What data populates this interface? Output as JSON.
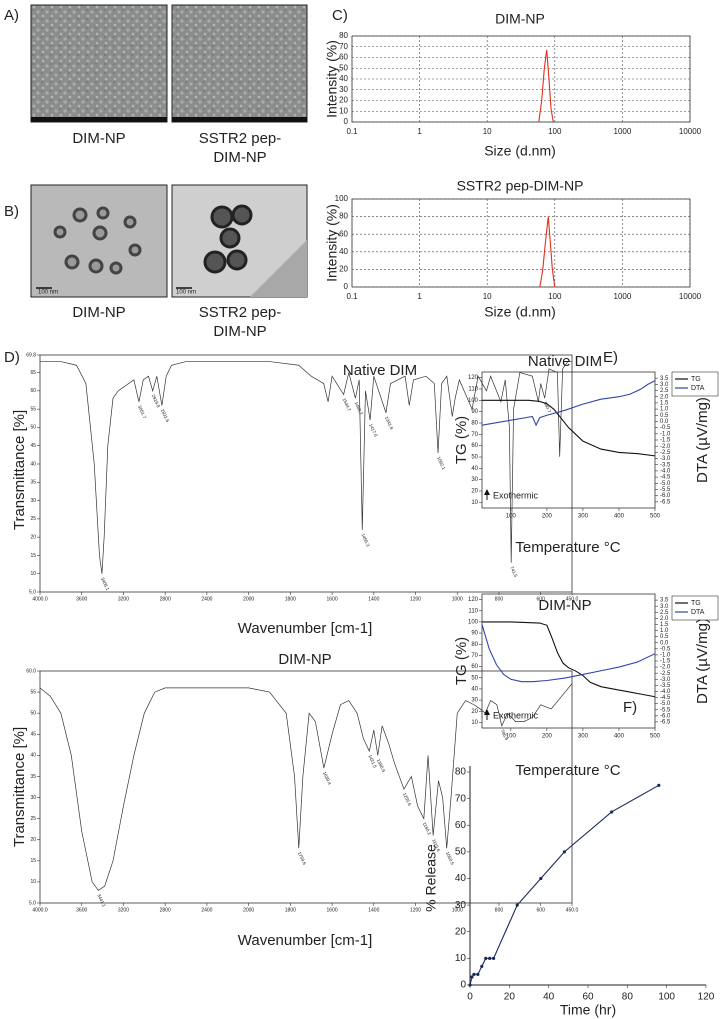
{
  "panel_labels": [
    "A)",
    "B)",
    "C)",
    "D)",
    "E)",
    "F)"
  ],
  "images": [
    {
      "caption": [
        "DIM-NP"
      ]
    },
    {
      "caption": [
        "SSTR2 pep-",
        "DIM-NP"
      ]
    },
    {
      "caption": [
        "DIM-NP"
      ],
      "scale_bar": "100 nm"
    },
    {
      "caption": [
        "SSTR2 pep-",
        "DIM-NP"
      ],
      "scale_bar": "100 nm"
    }
  ],
  "chart_data": [
    {
      "type": "line",
      "title": "DIM-NP",
      "xlabel": "Size (d.nm)",
      "ylabel": "Intensity (%)",
      "xscale": "log",
      "xlim": [
        0.1,
        10000
      ],
      "xticks": [
        0.1,
        1,
        10,
        100,
        1000,
        10000
      ],
      "ylim": [
        0,
        80
      ],
      "yticks": [
        0,
        10,
        20,
        30,
        40,
        50,
        60,
        70,
        80
      ],
      "grid": true,
      "series": [
        {
          "color": "#e0301e",
          "x": [
            58,
            64,
            70,
            76,
            82,
            88,
            95
          ],
          "values": [
            0,
            20,
            50,
            67,
            40,
            12,
            0
          ]
        }
      ]
    },
    {
      "type": "line",
      "title": "SSTR2 pep-DIM-NP",
      "xlabel": "Size (d.nm)",
      "ylabel": "Intensity (%)",
      "xscale": "log",
      "xlim": [
        0.1,
        10000
      ],
      "xticks": [
        0.1,
        1,
        10,
        100,
        1000,
        10000
      ],
      "ylim": [
        0,
        100
      ],
      "yticks": [
        0,
        20,
        40,
        60,
        80,
        100
      ],
      "grid": true,
      "series": [
        {
          "color": "#e0301e",
          "x": [
            60,
            66,
            72,
            80,
            86,
            92,
            100
          ],
          "values": [
            0,
            18,
            48,
            80,
            50,
            20,
            0
          ]
        }
      ]
    },
    {
      "type": "line",
      "title": "Native DIM",
      "xlabel": "Wavenumber [cm-1]",
      "ylabel": "Transmittance [%]",
      "xlim": [
        4000,
        450
      ],
      "x_scale_change": 2000,
      "xticks": [
        {
          "value": 4000,
          "label": "4000.0"
        },
        3600,
        3200,
        2800,
        2400,
        2000,
        1800,
        1600,
        1400,
        1200,
        1000,
        800,
        600,
        {
          "value": 450,
          "label": "450.0"
        }
      ],
      "ylim": [
        5,
        69.8
      ],
      "yticks": [
        {
          "value": 5,
          "label": "5.0"
        },
        10,
        15,
        20,
        25,
        30,
        35,
        40,
        45,
        50,
        55,
        60,
        65,
        69.8
      ],
      "grid": false,
      "peaks": [
        3406.1,
        3051.7,
        2919.8,
        2831.6,
        1544.7,
        1488.2,
        1455.3,
        1417.6,
        1341.8,
        1092.1,
        741.5,
        580.7
      ],
      "series": [
        {
          "color": "#333333",
          "x": [
            4000,
            3800,
            3650,
            3560,
            3480,
            3430,
            3406.1,
            3385,
            3350,
            3300,
            3250,
            3200,
            3100,
            3051.7,
            3010,
            2960,
            2919.8,
            2880,
            2831.6,
            2790,
            2740,
            2600,
            2200,
            1900,
            1760,
            1700,
            1640,
            1619,
            1600,
            1544.7,
            1520,
            1488.2,
            1470,
            1455.3,
            1440,
            1417.6,
            1400,
            1341.8,
            1320,
            1250,
            1230,
            1210,
            1150,
            1110,
            1092.1,
            1075,
            1050,
            1024,
            1010,
            990,
            929,
            900,
            860,
            840,
            791,
            770,
            750,
            741.5,
            730,
            700,
            640,
            611,
            600,
            580.7,
            560,
            520,
            509,
            495,
            470,
            450
          ],
          "values": [
            68,
            68,
            67,
            62,
            40,
            15,
            10,
            20,
            45,
            58,
            60,
            61,
            63,
            57,
            63,
            64,
            60,
            64,
            56,
            64,
            67,
            68,
            68,
            68,
            67,
            64,
            62,
            57,
            64,
            59,
            65,
            58,
            63,
            22,
            60,
            52,
            64,
            54,
            62,
            64,
            56,
            63,
            64,
            62,
            43,
            62,
            64,
            53,
            58,
            63,
            55,
            64,
            60,
            64,
            57,
            63,
            50,
            13,
            55,
            65,
            64,
            57,
            62,
            58,
            66,
            65,
            42,
            66,
            68,
            68
          ]
        }
      ]
    },
    {
      "type": "line",
      "title": "DIM-NP",
      "xlabel": "Wavenumber [cm-1]",
      "ylabel": "Transmittance [%]",
      "xlim": [
        4000,
        450
      ],
      "x_scale_change": 2000,
      "xticks": [
        {
          "value": 4000,
          "label": "4000.0"
        },
        3600,
        3200,
        2800,
        2400,
        2000,
        1800,
        1600,
        1400,
        1200,
        1000,
        800,
        600,
        {
          "value": 450,
          "label": "450.0"
        }
      ],
      "ylim": [
        5,
        60
      ],
      "yticks": [
        {
          "value": 5,
          "label": "5.0"
        },
        10,
        15,
        20,
        25,
        30,
        35,
        40,
        45,
        50,
        55,
        {
          "value": 60,
          "label": "60.0"
        }
      ],
      "grid": false,
      "peaks": [
        3441.1,
        1759.6,
        1639.4,
        1421.5,
        1380.9,
        1255.6,
        1160.2,
        1115.6,
        1050.5,
        786.4
      ],
      "series": [
        {
          "color": "#333333",
          "x": [
            4000,
            3900,
            3800,
            3700,
            3600,
            3500,
            3441.1,
            3380,
            3300,
            3200,
            3100,
            3000,
            2900,
            2800,
            2400,
            2000,
            1900,
            1820,
            1780,
            1759.6,
            1740,
            1710,
            1680,
            1639.4,
            1600,
            1560,
            1520,
            1480,
            1450,
            1421.5,
            1400,
            1380.9,
            1360,
            1330,
            1300,
            1255.6,
            1220,
            1190,
            1160.2,
            1140,
            1115.6,
            1090,
            1070,
            1050.5,
            1030,
            1000,
            960,
            920,
            890,
            866,
            840,
            810,
            786.4,
            760,
            720,
            680,
            640,
            600,
            550,
            500,
            450
          ],
          "values": [
            56,
            54,
            50,
            40,
            22,
            10,
            8,
            9,
            15,
            28,
            40,
            50,
            55,
            56,
            56,
            56,
            55,
            50,
            35,
            18,
            35,
            50,
            48,
            37,
            45,
            52,
            53,
            50,
            44,
            41,
            46,
            40,
            47,
            43,
            38,
            32,
            35,
            28,
            25,
            40,
            21,
            34,
            30,
            18,
            30,
            50,
            53,
            52,
            51,
            50,
            53,
            52,
            47,
            50,
            48,
            48,
            49,
            52,
            51,
            54,
            57
          ]
        }
      ]
    },
    {
      "type": "line",
      "title": "Native DIM",
      "xlabel": "Temperature °C",
      "ylabel": "TG (%)",
      "y2label": "DTA (µV/mg)",
      "annotation": "Exothermic",
      "legend": "outside-right",
      "xlim": [
        20,
        500
      ],
      "xticks": [
        100,
        200,
        300,
        400,
        500
      ],
      "ylim": [
        5,
        125
      ],
      "yticks": [
        10,
        20,
        30,
        40,
        50,
        60,
        70,
        80,
        90,
        100,
        110,
        120
      ],
      "y2lim": [
        -7,
        4
      ],
      "y2ticks": [
        3.5,
        {
          "value": 3,
          "label": "3.0"
        },
        2.5,
        {
          "value": 2,
          "label": "2.0"
        },
        1.5,
        {
          "value": 1,
          "label": "1.0"
        },
        0.5,
        {
          "value": 0,
          "label": "0.0"
        },
        -0.5,
        {
          "value": -1,
          "label": "-1.0"
        },
        -1.5,
        {
          "value": -2,
          "label": "-2.0"
        },
        -2.5,
        {
          "value": -3,
          "label": "-3.0"
        },
        -3.5,
        {
          "value": -4,
          "label": "-4.0"
        },
        -4.5,
        {
          "value": -5,
          "label": "-5.0"
        },
        -5.5,
        {
          "value": -6,
          "label": "-6.0"
        },
        -6.5
      ],
      "grid": false,
      "series": [
        {
          "name": "TG",
          "color": "#111111",
          "x": [
            20,
            100,
            150,
            180,
            200,
            220,
            240,
            260,
            280,
            300,
            350,
            400,
            450,
            500
          ],
          "values": [
            100,
            100,
            100,
            99,
            97,
            92,
            84,
            76,
            70,
            64,
            57,
            54,
            53,
            51
          ]
        },
        {
          "name": "DTA",
          "color": "#3344aa",
          "axis": "y2",
          "x": [
            20,
            60,
            100,
            140,
            160,
            170,
            180,
            200,
            250,
            300,
            350,
            400,
            430,
            460,
            480,
            500
          ],
          "values": [
            -0.3,
            -0.1,
            0.1,
            0.3,
            0.4,
            -0.3,
            0.3,
            0.5,
            0.9,
            1.4,
            1.8,
            2.0,
            2.2,
            2.6,
            3.0,
            3.3
          ]
        }
      ]
    },
    {
      "type": "line",
      "title": "DIM-NP",
      "xlabel": "Temperature °C",
      "ylabel": "TG (%)",
      "y2label": "DTA (µV/mg)",
      "annotation": "Exothermic",
      "legend": "outside-right",
      "xlim": [
        20,
        500
      ],
      "xticks": [
        100,
        200,
        300,
        400,
        500
      ],
      "ylim": [
        5,
        125
      ],
      "yticks": [
        10,
        20,
        30,
        40,
        50,
        60,
        70,
        80,
        90,
        100,
        110,
        120
      ],
      "y2lim": [
        -7,
        4
      ],
      "y2ticks": [
        3.5,
        {
          "value": 3,
          "label": "3.0"
        },
        2.5,
        {
          "value": 2,
          "label": "2.0"
        },
        1.5,
        {
          "value": 1,
          "label": "1.0"
        },
        0.5,
        {
          "value": 0,
          "label": "0.0"
        },
        -0.5,
        {
          "value": -1,
          "label": "-1.0"
        },
        -1.5,
        {
          "value": -2,
          "label": "-2.0"
        },
        -2.5,
        {
          "value": -3,
          "label": "-3.0"
        },
        -3.5,
        {
          "value": -4,
          "label": "-4.0"
        },
        -4.5,
        {
          "value": -5,
          "label": "-5.0"
        },
        -5.5,
        {
          "value": -6,
          "label": "-6.0"
        },
        -6.5
      ],
      "grid": false,
      "series": [
        {
          "name": "TG",
          "color": "#111111",
          "x": [
            20,
            100,
            180,
            200,
            215,
            230,
            245,
            260,
            280,
            300,
            320,
            350,
            400,
            450,
            500
          ],
          "values": [
            100,
            100,
            99,
            97,
            85,
            72,
            63,
            59,
            56,
            52,
            46,
            42,
            39,
            36,
            33
          ]
        },
        {
          "name": "DTA",
          "color": "#3344aa",
          "axis": "y2",
          "x": [
            20,
            40,
            60,
            80,
            100,
            130,
            160,
            200,
            250,
            300,
            350,
            400,
            450,
            500
          ],
          "values": [
            1.5,
            -0.5,
            -1.8,
            -2.6,
            -3.0,
            -3.2,
            -3.2,
            -3.1,
            -2.9,
            -2.6,
            -2.3,
            -2.0,
            -1.6,
            -0.9
          ]
        }
      ]
    },
    {
      "type": "line",
      "xlabel": "Time (hr)",
      "ylabel": "% Release",
      "markers": true,
      "xlim": [
        0,
        120
      ],
      "xticks": [
        0,
        20,
        40,
        60,
        80,
        100,
        120
      ],
      "ylim": [
        0,
        80
      ],
      "yticks": [
        0,
        10,
        20,
        30,
        40,
        50,
        60,
        70,
        80
      ],
      "grid": false,
      "series": [
        {
          "color": "#1a2a5a",
          "x": [
            0,
            1,
            2,
            4,
            6,
            8,
            10,
            12,
            24,
            36,
            48,
            72,
            96
          ],
          "values": [
            0,
            3,
            4,
            4,
            7,
            10,
            10,
            10,
            30,
            40,
            50,
            65,
            75
          ]
        }
      ]
    }
  ]
}
